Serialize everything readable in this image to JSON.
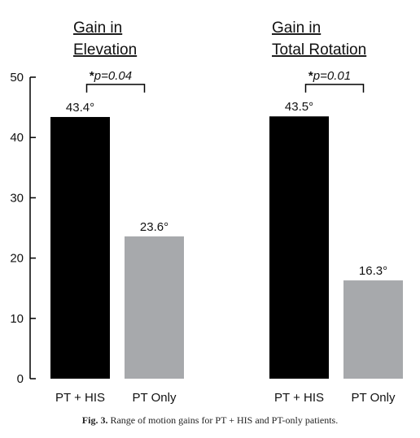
{
  "chart_data": {
    "type": "bar",
    "ylim": [
      0,
      50
    ],
    "yticks": [
      0,
      10,
      20,
      30,
      40,
      50
    ],
    "series_colors": [
      "#000000",
      "#a7a9ac"
    ],
    "panels": [
      {
        "title_lines": [
          "Gain in",
          "Elevation"
        ],
        "categories": [
          "PT + HIS",
          "PT Only"
        ],
        "values": [
          43.4,
          23.6
        ],
        "value_labels": [
          "43.4°",
          "23.6°"
        ],
        "significance": {
          "star": "*",
          "text": "p=0.04"
        }
      },
      {
        "title_lines": [
          "Gain in",
          "Total Rotation"
        ],
        "categories": [
          "PT + HIS",
          "PT Only"
        ],
        "values": [
          43.5,
          16.3
        ],
        "value_labels": [
          "43.5°",
          "16.3°"
        ],
        "significance": {
          "star": "*",
          "text": "p=0.01"
        }
      }
    ]
  },
  "caption": {
    "figure_number": "Fig. 3.",
    "text": "Range of motion gains for PT + HIS and PT-only patients."
  }
}
